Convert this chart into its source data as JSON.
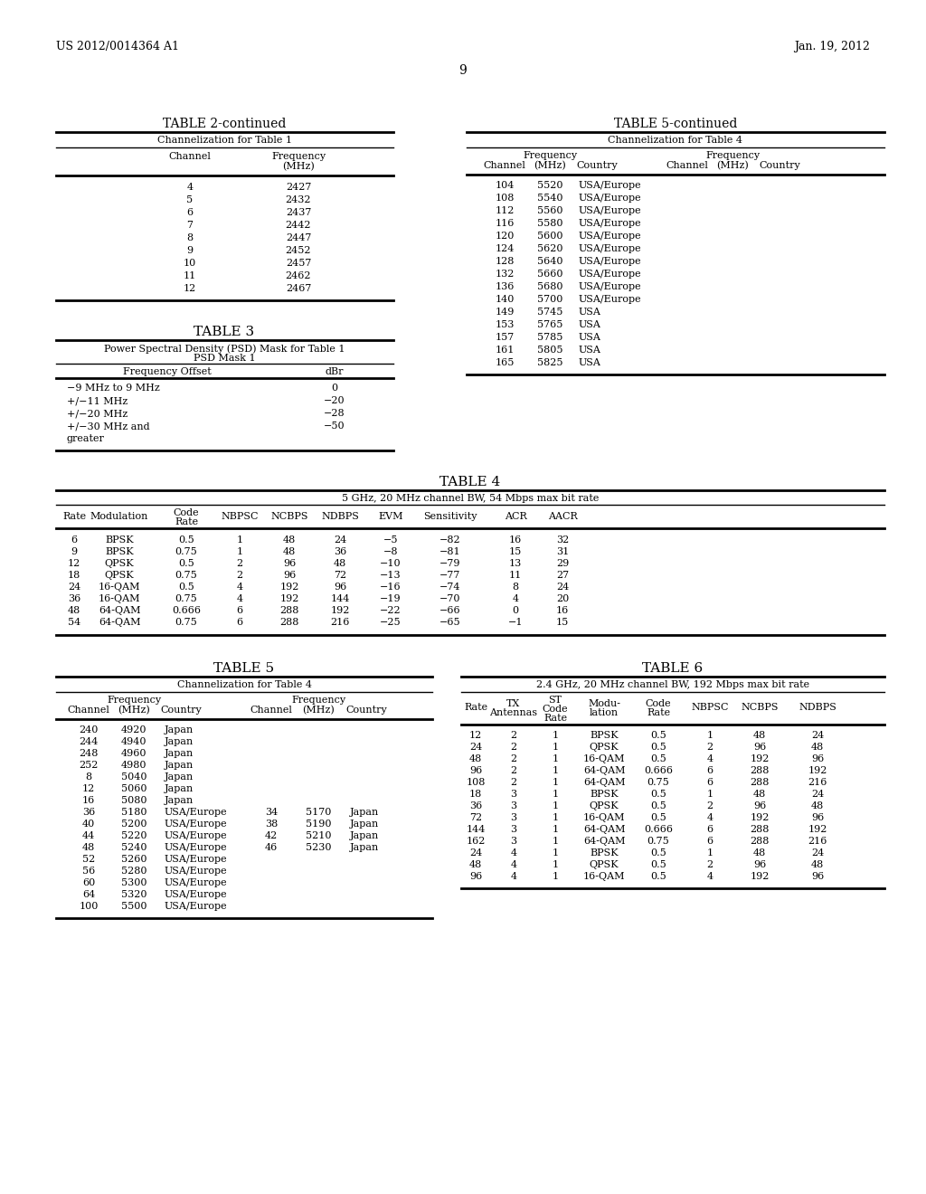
{
  "header_left": "US 2012/0014364 A1",
  "header_right": "Jan. 19, 2012",
  "page_num": "9",
  "bg_color": "#ffffff",
  "text_color": "#000000",
  "table2_title": "TABLE 2-continued",
  "table2_subtitle": "Channelization for Table 1",
  "table2_data": [
    [
      "4",
      "2427"
    ],
    [
      "5",
      "2432"
    ],
    [
      "6",
      "2437"
    ],
    [
      "7",
      "2442"
    ],
    [
      "8",
      "2447"
    ],
    [
      "9",
      "2452"
    ],
    [
      "10",
      "2457"
    ],
    [
      "11",
      "2462"
    ],
    [
      "12",
      "2467"
    ]
  ],
  "table3_title": "TABLE 3",
  "table3_subtitle1": "Power Spectral Density (PSD) Mask for Table 1",
  "table3_subtitle2": "PSD Mask 1",
  "table3_data": [
    [
      "−9 MHz to 9 MHz",
      "0"
    ],
    [
      "+/−11 MHz",
      "−20"
    ],
    [
      "+/−20 MHz",
      "−28"
    ],
    [
      "+/−30 MHz and",
      "−50"
    ],
    [
      "greater",
      ""
    ]
  ],
  "table5c_title": "TABLE 5-continued",
  "table5c_subtitle": "Channelization for Table 4",
  "table5c_data": [
    [
      "104",
      "5520",
      "USA/Europe",
      "",
      "",
      ""
    ],
    [
      "108",
      "5540",
      "USA/Europe",
      "",
      "",
      ""
    ],
    [
      "112",
      "5560",
      "USA/Europe",
      "",
      "",
      ""
    ],
    [
      "116",
      "5580",
      "USA/Europe",
      "",
      "",
      ""
    ],
    [
      "120",
      "5600",
      "USA/Europe",
      "",
      "",
      ""
    ],
    [
      "124",
      "5620",
      "USA/Europe",
      "",
      "",
      ""
    ],
    [
      "128",
      "5640",
      "USA/Europe",
      "",
      "",
      ""
    ],
    [
      "132",
      "5660",
      "USA/Europe",
      "",
      "",
      ""
    ],
    [
      "136",
      "5680",
      "USA/Europe",
      "",
      "",
      ""
    ],
    [
      "140",
      "5700",
      "USA/Europe",
      "",
      "",
      ""
    ],
    [
      "149",
      "5745",
      "USA",
      "",
      "",
      ""
    ],
    [
      "153",
      "5765",
      "USA",
      "",
      "",
      ""
    ],
    [
      "157",
      "5785",
      "USA",
      "",
      "",
      ""
    ],
    [
      "161",
      "5805",
      "USA",
      "",
      "",
      ""
    ],
    [
      "165",
      "5825",
      "USA",
      "",
      "",
      ""
    ]
  ],
  "table4_title": "TABLE 4",
  "table4_subtitle": "5 GHz, 20 MHz channel BW, 54 Mbps max bit rate",
  "table4_data": [
    [
      "6",
      "BPSK",
      "0.5",
      "1",
      "48",
      "24",
      "−5",
      "−82",
      "16",
      "32"
    ],
    [
      "9",
      "BPSK",
      "0.75",
      "1",
      "48",
      "36",
      "−8",
      "−81",
      "15",
      "31"
    ],
    [
      "12",
      "QPSK",
      "0.5",
      "2",
      "96",
      "48",
      "−10",
      "−79",
      "13",
      "29"
    ],
    [
      "18",
      "QPSK",
      "0.75",
      "2",
      "96",
      "72",
      "−13",
      "−77",
      "11",
      "27"
    ],
    [
      "24",
      "16-QAM",
      "0.5",
      "4",
      "192",
      "96",
      "−16",
      "−74",
      "8",
      "24"
    ],
    [
      "36",
      "16-QAM",
      "0.75",
      "4",
      "192",
      "144",
      "−19",
      "−70",
      "4",
      "20"
    ],
    [
      "48",
      "64-QAM",
      "0.666",
      "6",
      "288",
      "192",
      "−22",
      "−66",
      "0",
      "16"
    ],
    [
      "54",
      "64-QAM",
      "0.75",
      "6",
      "288",
      "216",
      "−25",
      "−65",
      "−1",
      "15"
    ]
  ],
  "table5_title": "TABLE 5",
  "table5_subtitle": "Channelization for Table 4",
  "table5_data": [
    [
      "240",
      "4920",
      "Japan",
      "",
      "",
      ""
    ],
    [
      "244",
      "4940",
      "Japan",
      "",
      "",
      ""
    ],
    [
      "248",
      "4960",
      "Japan",
      "",
      "",
      ""
    ],
    [
      "252",
      "4980",
      "Japan",
      "",
      "",
      ""
    ],
    [
      "8",
      "5040",
      "Japan",
      "",
      "",
      ""
    ],
    [
      "12",
      "5060",
      "Japan",
      "",
      "",
      ""
    ],
    [
      "16",
      "5080",
      "Japan",
      "",
      "",
      ""
    ],
    [
      "36",
      "5180",
      "USA/Europe",
      "34",
      "5170",
      "Japan"
    ],
    [
      "40",
      "5200",
      "USA/Europe",
      "38",
      "5190",
      "Japan"
    ],
    [
      "44",
      "5220",
      "USA/Europe",
      "42",
      "5210",
      "Japan"
    ],
    [
      "48",
      "5240",
      "USA/Europe",
      "46",
      "5230",
      "Japan"
    ],
    [
      "52",
      "5260",
      "USA/Europe",
      "",
      "",
      ""
    ],
    [
      "56",
      "5280",
      "USA/Europe",
      "",
      "",
      ""
    ],
    [
      "60",
      "5300",
      "USA/Europe",
      "",
      "",
      ""
    ],
    [
      "64",
      "5320",
      "USA/Europe",
      "",
      "",
      ""
    ],
    [
      "100",
      "5500",
      "USA/Europe",
      "",
      "",
      ""
    ]
  ],
  "table6_title": "TABLE 6",
  "table6_subtitle": "2.4 GHz, 20 MHz channel BW, 192 Mbps max bit rate",
  "table6_data": [
    [
      "12",
      "2",
      "1",
      "BPSK",
      "0.5",
      "1",
      "48",
      "24"
    ],
    [
      "24",
      "2",
      "1",
      "QPSK",
      "0.5",
      "2",
      "96",
      "48"
    ],
    [
      "48",
      "2",
      "1",
      "16-QAM",
      "0.5",
      "4",
      "192",
      "96"
    ],
    [
      "96",
      "2",
      "1",
      "64-QAM",
      "0.666",
      "6",
      "288",
      "192"
    ],
    [
      "108",
      "2",
      "1",
      "64-QAM",
      "0.75",
      "6",
      "288",
      "216"
    ],
    [
      "18",
      "3",
      "1",
      "BPSK",
      "0.5",
      "1",
      "48",
      "24"
    ],
    [
      "36",
      "3",
      "1",
      "QPSK",
      "0.5",
      "2",
      "96",
      "48"
    ],
    [
      "72",
      "3",
      "1",
      "16-QAM",
      "0.5",
      "4",
      "192",
      "96"
    ],
    [
      "144",
      "3",
      "1",
      "64-QAM",
      "0.666",
      "6",
      "288",
      "192"
    ],
    [
      "162",
      "3",
      "1",
      "64-QAM",
      "0.75",
      "6",
      "288",
      "216"
    ],
    [
      "24",
      "4",
      "1",
      "BPSK",
      "0.5",
      "1",
      "48",
      "24"
    ],
    [
      "48",
      "4",
      "1",
      "QPSK",
      "0.5",
      "2",
      "96",
      "48"
    ],
    [
      "96",
      "4",
      "1",
      "16-QAM",
      "0.5",
      "4",
      "192",
      "96"
    ]
  ]
}
